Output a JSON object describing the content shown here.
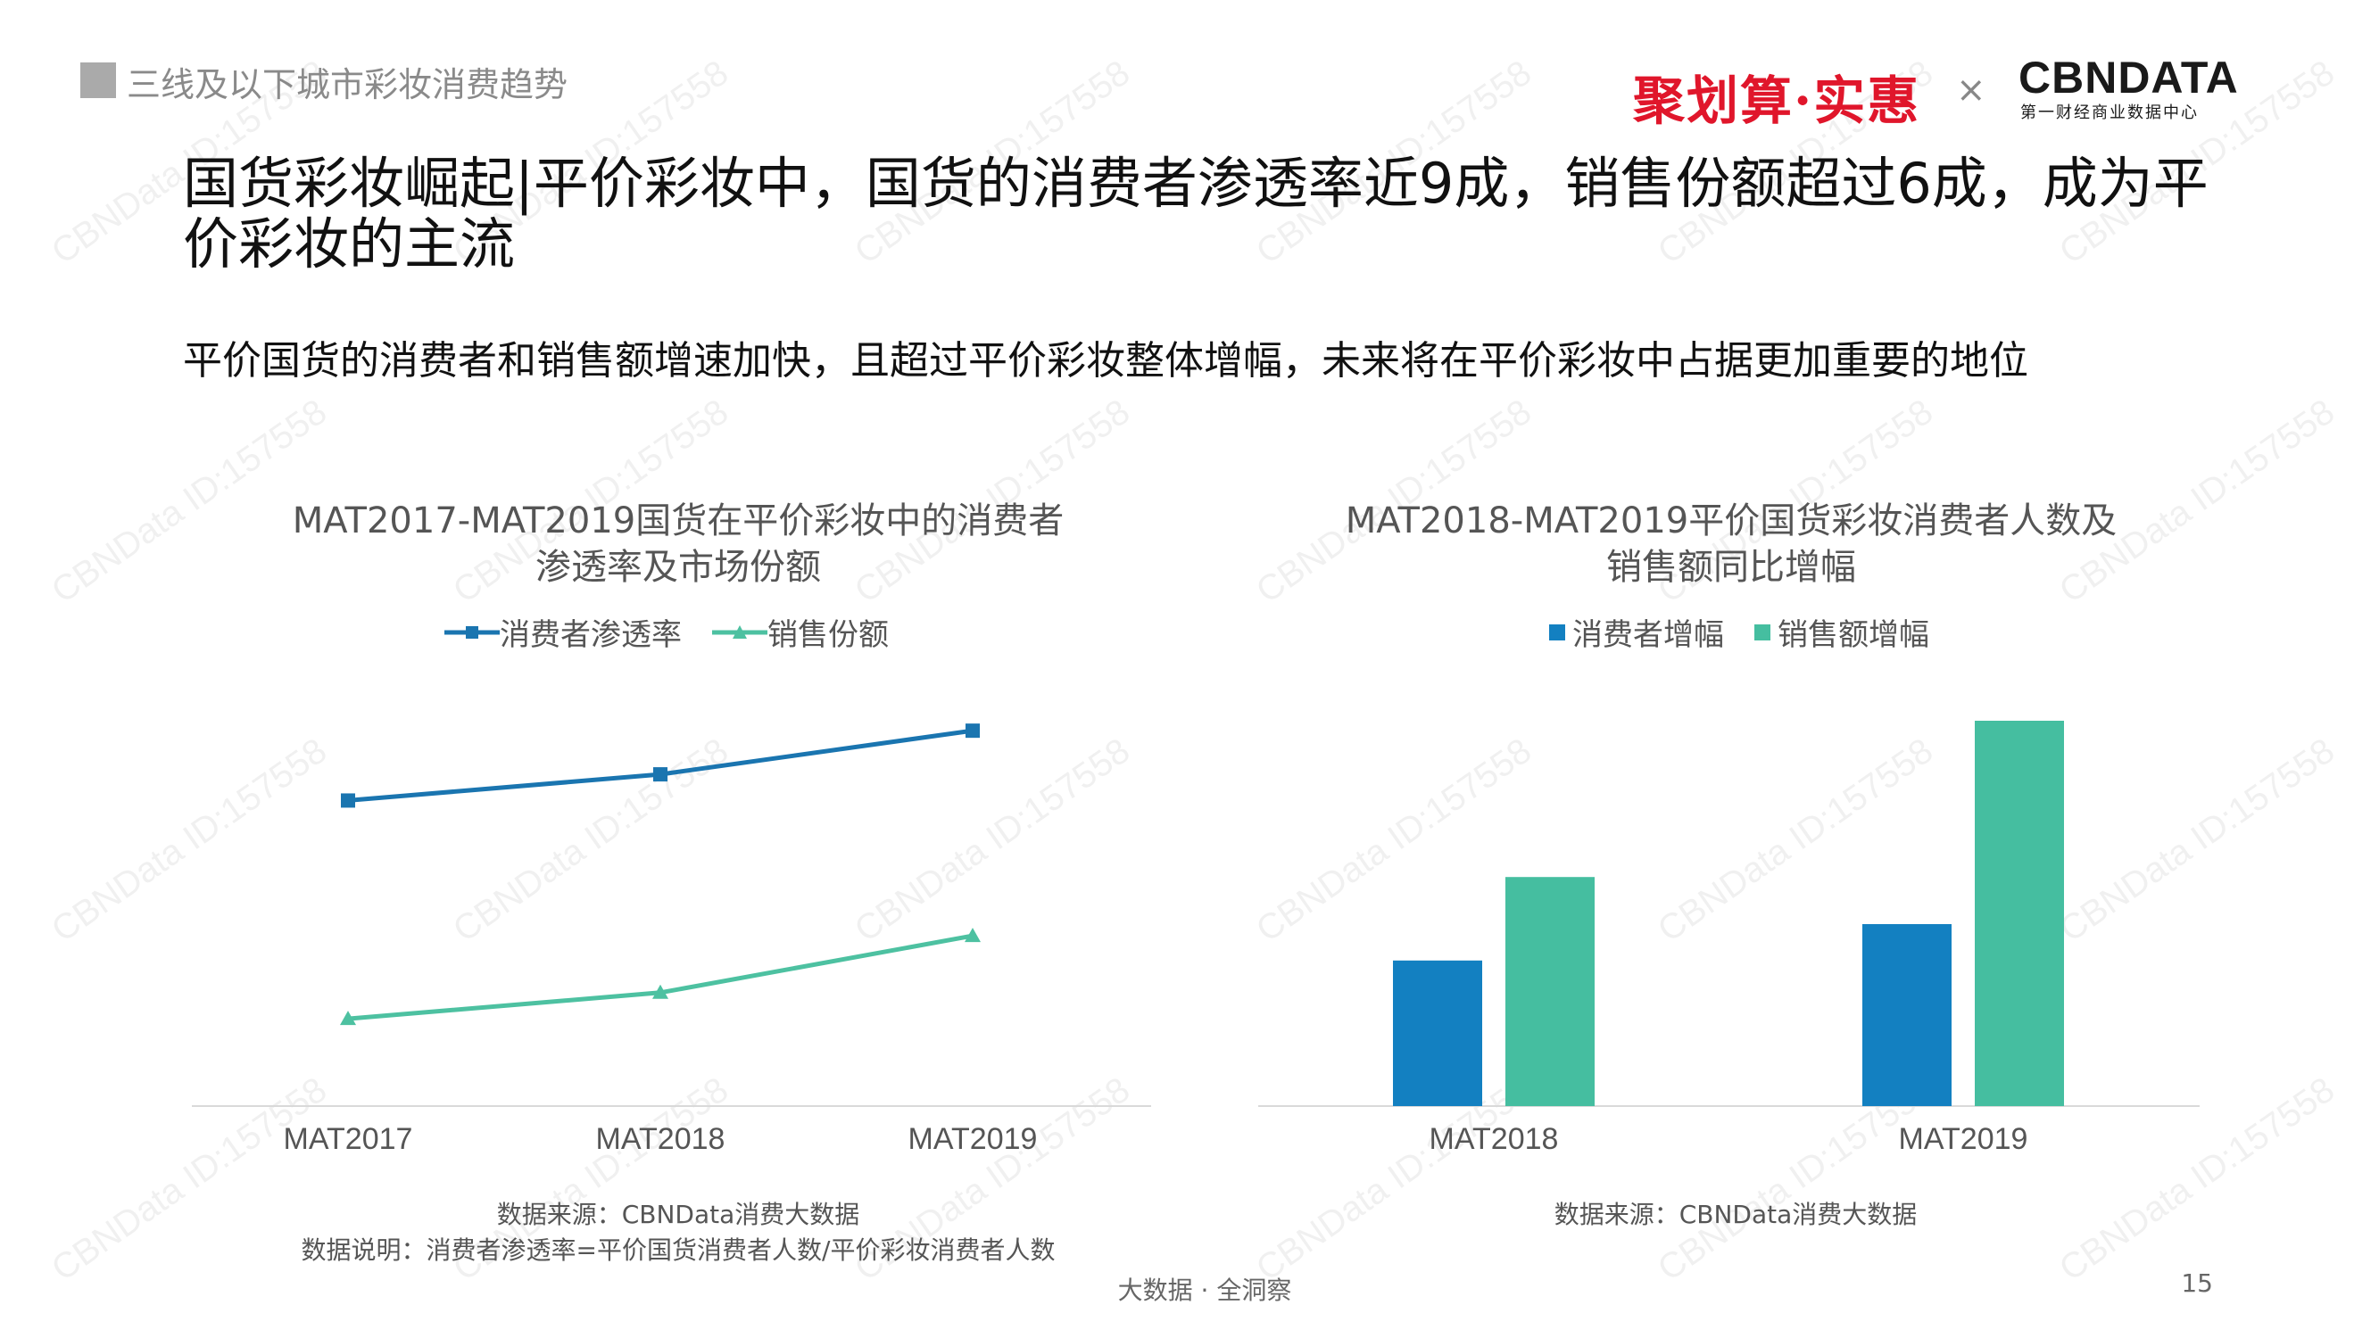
{
  "header": {
    "section_label": "三线及以下城市彩妆消费趋势",
    "logo_left": "聚划算·实惠",
    "logo_sep": "×",
    "logo_right": "CBNDATA",
    "logo_right_sub": "第一财经商业数据中心"
  },
  "title": "国货彩妆崛起|平价彩妆中，国货的消费者渗透率近9成，销售份额超过6成，成为平价彩妆的主流",
  "subtitle": "平价国货的消费者和销售额增速加快，且超过平价彩妆整体增幅，未来将在平价彩妆中占据更加重要的地位",
  "watermark_text": "CBNData ID:157558",
  "colors": {
    "blue": "#1a75b0",
    "teal": "#4dc1a1",
    "bar_blue": "#1380c1",
    "bar_teal": "#45bea0"
  },
  "chart_data": [
    {
      "type": "line",
      "title_line1": "MAT2017-MAT2019国货在平价彩妆中的消费者",
      "title_line2": "渗透率及市场份额",
      "categories": [
        "MAT2017",
        "MAT2018",
        "MAT2019"
      ],
      "series": [
        {
          "name": "消费者渗透率",
          "values": [
            0.8,
            0.83,
            0.88
          ]
        },
        {
          "name": "销售份额",
          "values": [
            0.55,
            0.58,
            0.645
          ]
        }
      ],
      "ylim": [
        0.45,
        0.92
      ],
      "source": "数据来源：CBNData消费大数据",
      "note": "数据说明：消费者渗透率=平价国货消费者人数/平价彩妆消费者人数"
    },
    {
      "type": "bar",
      "title_line1": "MAT2018-MAT2019平价国货彩妆消费者人数及",
      "title_line2": "销售额同比增幅",
      "categories": [
        "MAT2018",
        "MAT2019"
      ],
      "series": [
        {
          "name": "消费者增幅",
          "values": [
            0.34,
            0.425
          ]
        },
        {
          "name": "销售额增幅",
          "values": [
            0.535,
            0.9
          ]
        }
      ],
      "ylim": [
        0,
        1
      ],
      "source": "数据来源：CBNData消费大数据"
    }
  ],
  "footer": {
    "tagline": "大数据 · 全洞察",
    "page": "15"
  }
}
